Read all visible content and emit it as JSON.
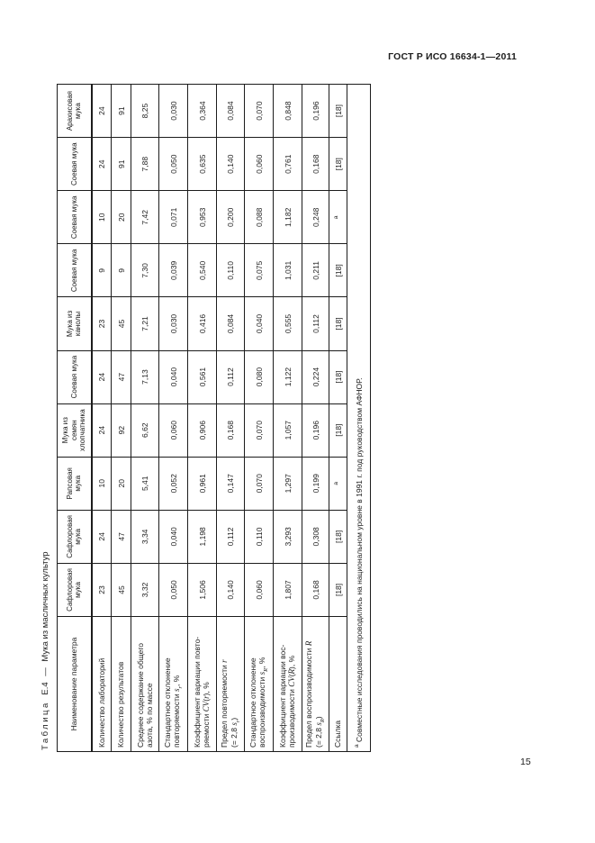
{
  "page": {
    "header_right": "ГОСТ Р ИСО 16634-1—2011",
    "page_number": "15"
  },
  "table": {
    "caption": {
      "label": "Таблица",
      "number": "Е.4",
      "dash": "—",
      "title": "Мука из масличных культур"
    },
    "columns": [
      "Наименование параметра",
      "Сафлоровая мука",
      "Сафлоровая мука",
      "Рапсовая мука",
      "Мука из семян хлопчатника",
      "Соевая мука",
      "Мука из канолы",
      "Соевая мука",
      "Соевая мука",
      "Соевая мука",
      "Арахисовая мука"
    ],
    "rows": [
      {
        "name_html": "Количество лабораторий",
        "values": [
          "23",
          "24",
          "10",
          "24",
          "24",
          "23",
          "9",
          "10",
          "24",
          "24"
        ]
      },
      {
        "name_html": "Количество результатов",
        "values": [
          "45",
          "47",
          "20",
          "92",
          "47",
          "45",
          "9",
          "20",
          "91",
          "91"
        ]
      },
      {
        "name_html": "Среднее содержание общего<br>азота, % по массе",
        "values": [
          "3,32",
          "3,34",
          "5,41",
          "6,62",
          "7,13",
          "7,21",
          "7,30",
          "7,42",
          "7,88",
          "8,25"
        ]
      },
      {
        "name_html": "Стандартное отклонение<br>повторяемости <i>s<sub>r</sub></i>, %",
        "values": [
          "0,050",
          "0,040",
          "0,052",
          "0,060",
          "0,040",
          "0,030",
          "0,039",
          "0,071",
          "0,050",
          "0,030"
        ]
      },
      {
        "name_html": "Коэффициент вариации повто-<br>ряемости <i>CV</i>(<i>r</i>), %",
        "values": [
          "1,506",
          "1,198",
          "0,961",
          "0,906",
          "0,561",
          "0,416",
          "0,540",
          "0,953",
          "0,635",
          "0,364"
        ]
      },
      {
        "name_html": "Предел повторяемости <i>r</i><br>(= 2,8 <i>s<sub>r</sub></i>)",
        "values": [
          "0,140",
          "0,112",
          "0,147",
          "0,168",
          "0,112",
          "0,084",
          "0,110",
          "0,200",
          "0,140",
          "0,084"
        ]
      },
      {
        "name_html": "Стандартное отклонение<br>воспроизводимости <i>s<sub>R</sub></i>, %",
        "values": [
          "0,060",
          "0,110",
          "0,070",
          "0,070",
          "0,080",
          "0,040",
          "0,075",
          "0,088",
          "0,060",
          "0,070"
        ]
      },
      {
        "name_html": "Коэффициент вариации вос-<br>производимости <i>CV</i>(<i>R</i>), %",
        "values": [
          "1,807",
          "3,293",
          "1,297",
          "1,057",
          "1,122",
          "0,555",
          "1,031",
          "1,182",
          "0,761",
          "0,848"
        ]
      },
      {
        "name_html": "Предел воспроизводимости <i>R</i><br>(= 2,8 <i>s<sub>R</sub></i>)",
        "values": [
          "0,168",
          "0,308",
          "0,199",
          "0,196",
          "0,224",
          "0,112",
          "0,211",
          "0,248",
          "0,168",
          "0,196"
        ]
      },
      {
        "name_html": "Ссылка",
        "values": [
          "[18]",
          "[18]",
          "<sup>а</sup>",
          "[18]",
          "[18]",
          "[18]",
          "[18]",
          "<sup>а</sup>",
          "[18]",
          "[18]"
        ]
      }
    ],
    "footnote_html": "<sup>а</sup> Совместные исследования проводились на национальном уровне в 1991 г. под руководством АФНОР."
  }
}
